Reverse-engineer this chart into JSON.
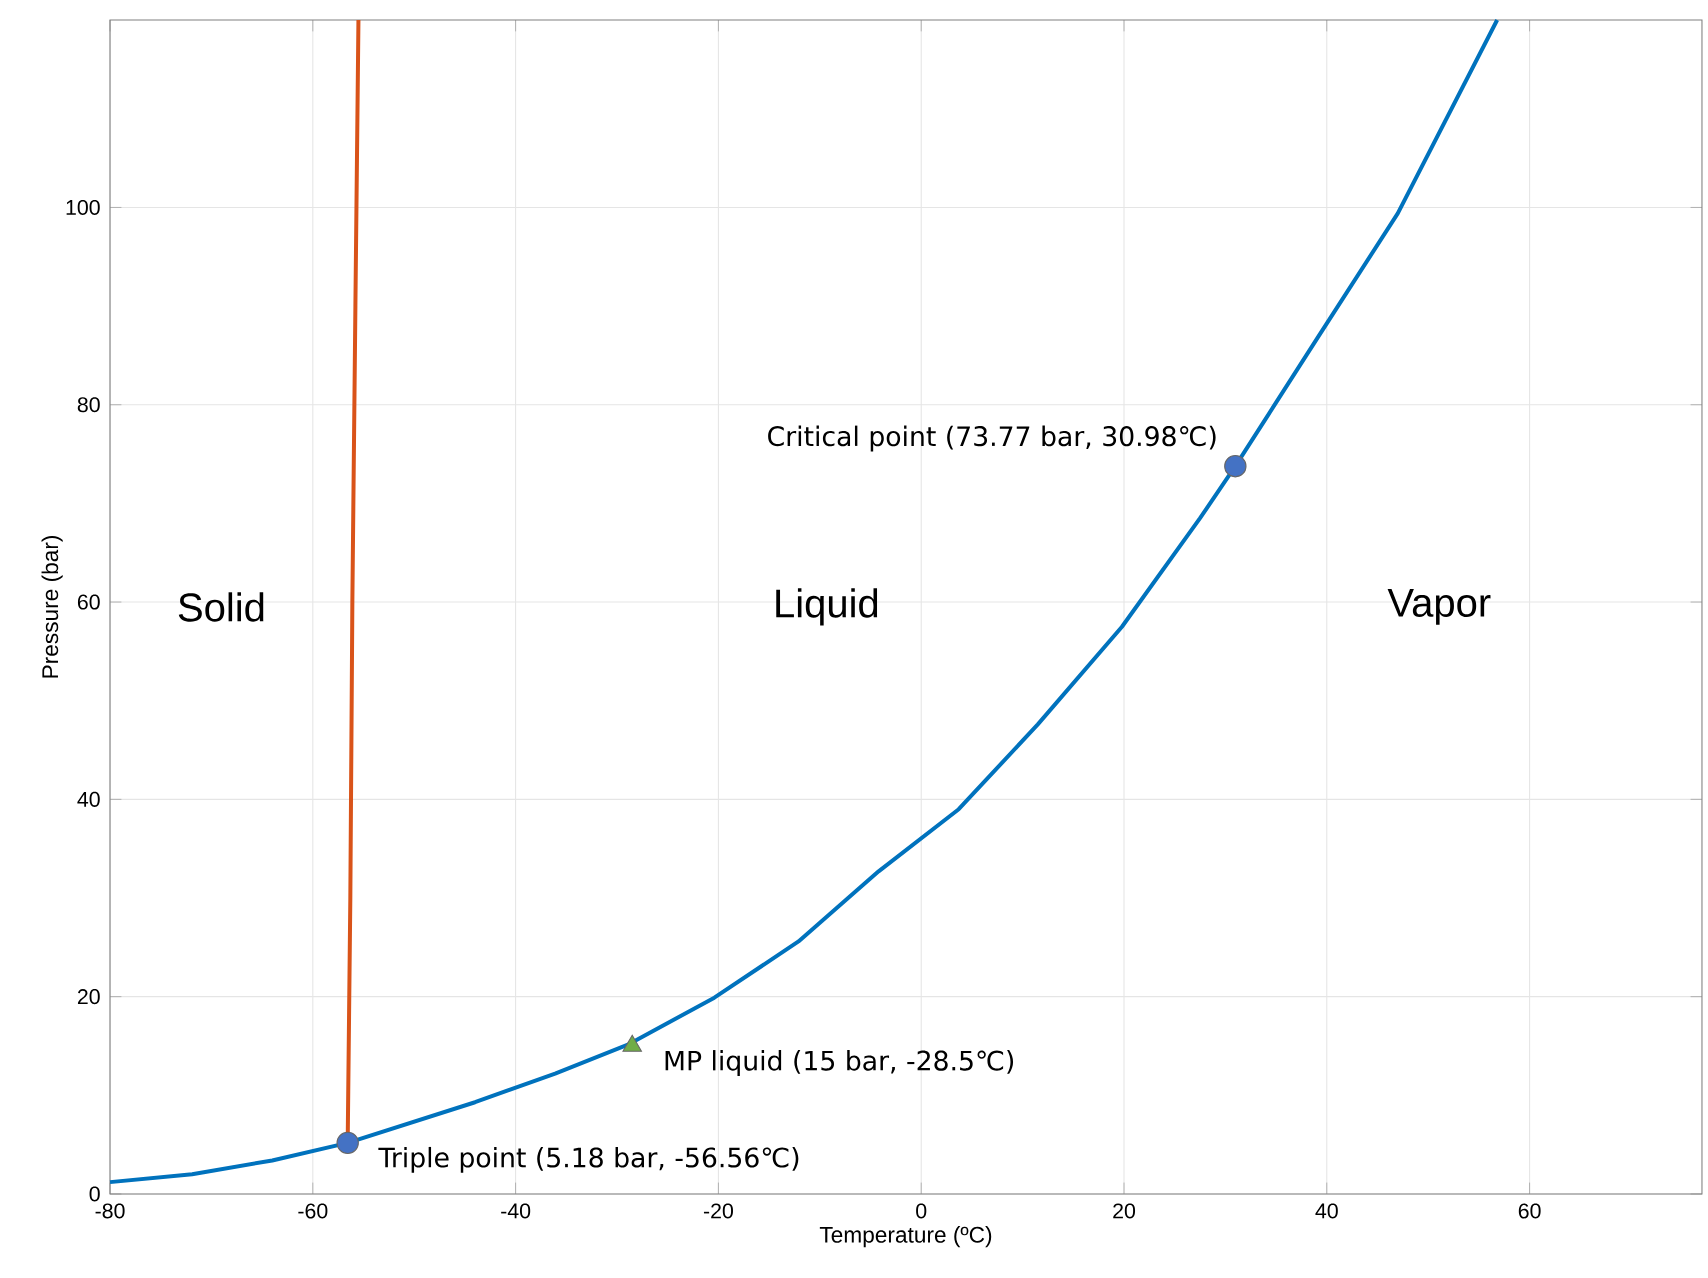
{
  "chart_data": {
    "type": "line",
    "xlabel": "Temperature (ºC)",
    "ylabel": "Pressure (bar)",
    "xlim": [
      -80,
      77
    ],
    "ylim": [
      0,
      119
    ],
    "xticks": [
      -80,
      -60,
      -40,
      -20,
      0,
      20,
      40,
      60
    ],
    "yticks": [
      0,
      20,
      40,
      60,
      80,
      100
    ],
    "grid": true,
    "series": [
      {
        "color": "#0072bd",
        "marker": "none",
        "x": [
          -80,
          -71.9,
          -64,
          -56.56,
          -44,
          -36.1,
          -28.8,
          -20.4,
          -12.1,
          -4.2,
          3.7,
          11.5,
          19.8,
          27.5,
          30.98,
          39.1,
          47,
          56.8
        ],
        "values": [
          1.2,
          2.0,
          3.4,
          5.18,
          9.3,
          12.2,
          15.2,
          19.9,
          25.6,
          32.7,
          39,
          47.6,
          57.5,
          68.5,
          73.77,
          86.8,
          99.4,
          119
        ]
      },
      {
        "color": "#d95319",
        "marker": "none",
        "x": [
          -56.56,
          -56.3,
          -56.1,
          -55.8,
          -55.5
        ],
        "values": [
          5.18,
          30,
          60,
          90,
          119
        ]
      },
      {
        "type": "scatter",
        "color": "#4472c4",
        "marker": "circle",
        "x": [
          -56.56,
          30.98
        ],
        "values": [
          5.18,
          73.77
        ]
      },
      {
        "type": "scatter",
        "color": "#70ad47",
        "marker": "triangle",
        "x": [
          -28.5
        ],
        "values": [
          15
        ]
      }
    ],
    "annotations": [
      {
        "text": "Triple point (5.18 bar, -56.56℃)",
        "x": -56.56,
        "y": 5.18
      },
      {
        "text": "Critical point (73.77 bar, 30.98℃)",
        "x": 30.98,
        "y": 73.77
      },
      {
        "text": "MP liquid (15 bar, -28.5℃)",
        "x": -28.5,
        "y": 15
      },
      "Solid",
      "Liquid",
      "Vapor"
    ]
  }
}
